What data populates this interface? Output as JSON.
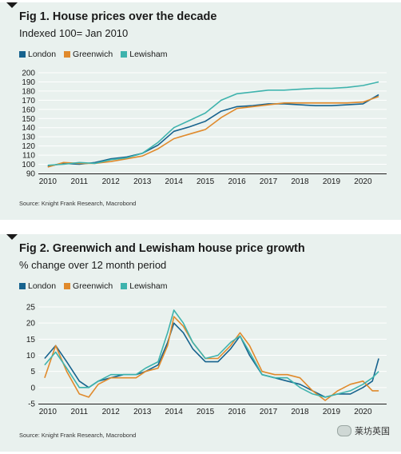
{
  "panels": [
    {
      "title": "Fig 1. House prices over the decade",
      "subtitle": "Indexed 100= Jan 2010",
      "source": "Source: Knight Frank Research, Macrobond"
    },
    {
      "title": "Fig 2. Greenwich and Lewisham house price growth",
      "subtitle": "% change over 12 month period",
      "source": "Source: Knight Frank Research, Macrobond"
    }
  ],
  "watermark": "莱坊英国",
  "colors": {
    "London": "#17638e",
    "Greenwich": "#e08a2c",
    "Lewisham": "#3eb3ad",
    "grid": "#ffffff",
    "panel": "#e9f1ee"
  },
  "chart_data": [
    {
      "type": "line",
      "title": "Fig 1. House prices over the decade",
      "subtitle": "Indexed 100= Jan 2010",
      "x_tick_labels": [
        "2010",
        "2011",
        "2012",
        "2013",
        "2014",
        "2015",
        "2016",
        "2017",
        "2018",
        "2019",
        "2020"
      ],
      "x": [
        2010.0,
        2010.5,
        2011.0,
        2011.5,
        2012.0,
        2012.5,
        2013.0,
        2013.5,
        2014.0,
        2014.5,
        2015.0,
        2015.5,
        2016.0,
        2016.5,
        2017.0,
        2017.5,
        2018.0,
        2018.5,
        2019.0,
        2019.5,
        2020.0,
        2020.5
      ],
      "ylim": [
        90,
        200
      ],
      "yticks": [
        90,
        100,
        110,
        120,
        130,
        140,
        150,
        160,
        170,
        180,
        190,
        200
      ],
      "grid": true,
      "legend_position": "top-left",
      "series": [
        {
          "name": "London",
          "values": [
            98,
            101,
            100,
            102,
            106,
            108,
            112,
            121,
            136,
            141,
            147,
            158,
            163,
            164,
            166,
            166,
            165,
            164,
            164,
            165,
            166,
            176
          ]
        },
        {
          "name": "Greenwich",
          "values": [
            97,
            102,
            101,
            101,
            103,
            106,
            109,
            117,
            128,
            133,
            138,
            151,
            161,
            163,
            165,
            167,
            167,
            167,
            167,
            167,
            168,
            174
          ]
        },
        {
          "name": "Lewisham",
          "values": [
            99,
            100,
            102,
            101,
            105,
            107,
            112,
            124,
            140,
            148,
            156,
            170,
            177,
            179,
            181,
            181,
            182,
            183,
            183,
            184,
            186,
            190
          ]
        }
      ]
    },
    {
      "type": "line",
      "title": "Fig 2. Greenwich and Lewisham house price growth",
      "subtitle": "% change over 12 month period",
      "x_tick_labels": [
        "2010",
        "2011",
        "2012",
        "2013",
        "2014",
        "2015",
        "2016",
        "2017",
        "2018",
        "2019",
        "2020"
      ],
      "x": [
        2009.9,
        2010.25,
        2010.6,
        2011.0,
        2011.3,
        2011.6,
        2012.0,
        2012.4,
        2012.8,
        2013.1,
        2013.5,
        2013.8,
        2014.0,
        2014.3,
        2014.6,
        2015.0,
        2015.4,
        2015.8,
        2016.1,
        2016.4,
        2016.8,
        2017.2,
        2017.6,
        2018.0,
        2018.4,
        2018.8,
        2019.2,
        2019.6,
        2020.0,
        2020.3,
        2020.5
      ],
      "ylim": [
        -5,
        25
      ],
      "yticks": [
        -5,
        0,
        5,
        10,
        15,
        20,
        25
      ],
      "grid": true,
      "legend_position": "top-left",
      "series": [
        {
          "name": "London",
          "values": [
            9,
            13,
            8,
            2,
            0,
            2,
            3,
            4,
            4,
            5,
            7,
            14,
            20,
            17,
            12,
            8,
            8,
            12,
            16,
            10,
            4,
            3,
            2,
            1,
            -1,
            -3,
            -2,
            -2,
            0,
            2,
            9
          ]
        },
        {
          "name": "Greenwich",
          "values": [
            3,
            13,
            5,
            -2,
            -3,
            1,
            3,
            3,
            3,
            5,
            6,
            13,
            22,
            19,
            14,
            9,
            9,
            13,
            17,
            13,
            5,
            4,
            4,
            3,
            -1,
            -4,
            -1,
            1,
            2,
            -1,
            -1
          ]
        },
        {
          "name": "Lewisham",
          "values": [
            7,
            11,
            6,
            0,
            0,
            2,
            4,
            4,
            4,
            6,
            8,
            17,
            24,
            20,
            14,
            9,
            10,
            14,
            16,
            11,
            4,
            3,
            3,
            0,
            -2,
            -3,
            -2,
            -1,
            1,
            3,
            5
          ]
        }
      ]
    }
  ]
}
